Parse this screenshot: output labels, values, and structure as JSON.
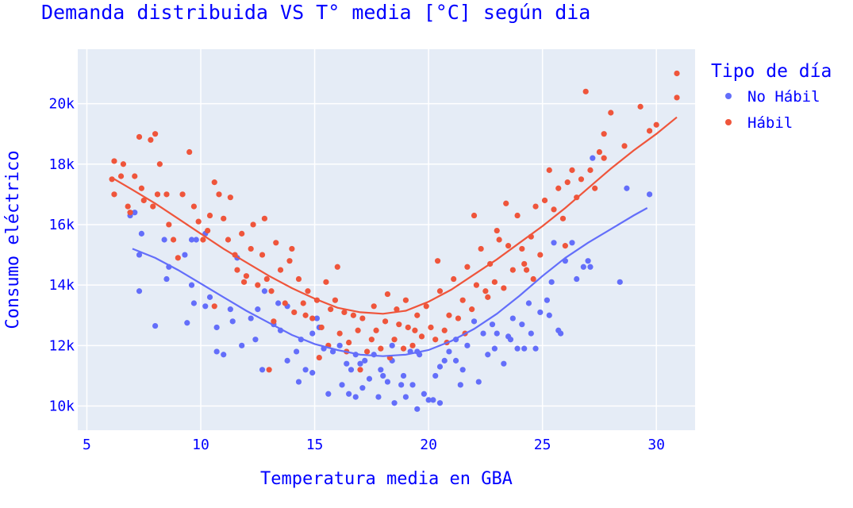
{
  "chart_data": {
    "type": "scatter",
    "title": "Demanda distribuida VS T° media [°C] según dia",
    "xlabel": "Temperatura media en GBA",
    "ylabel": "Consumo eléctrico",
    "xlim": [
      4.6,
      31.7
    ],
    "ylim": [
      9200,
      21800
    ],
    "x_ticks": [
      5,
      10,
      15,
      20,
      25,
      30
    ],
    "x_tick_labels": [
      "5",
      "10",
      "15",
      "20",
      "25",
      "30"
    ],
    "y_ticks": [
      10000,
      12000,
      14000,
      16000,
      18000,
      20000
    ],
    "y_tick_labels": [
      "10k",
      "12k",
      "14k",
      "16k",
      "18k",
      "20k"
    ],
    "grid": true,
    "legend_title": "Tipo de día",
    "legend_position": "right",
    "series": [
      {
        "name": "No Hábil",
        "color": "#636efa",
        "points": [
          [
            6.9,
            16300
          ],
          [
            7.1,
            16400
          ],
          [
            7.4,
            15700
          ],
          [
            7.3,
            15000
          ],
          [
            7.3,
            13800
          ],
          [
            8,
            12650
          ],
          [
            8.4,
            15500
          ],
          [
            8.6,
            14600
          ],
          [
            8.5,
            14200
          ],
          [
            9.4,
            12750
          ],
          [
            9.3,
            15000
          ],
          [
            9.6,
            15500
          ],
          [
            9.8,
            15500
          ],
          [
            9.6,
            14000
          ],
          [
            9.7,
            13400
          ],
          [
            10.2,
            13300
          ],
          [
            10.2,
            15700
          ],
          [
            10.4,
            13600
          ],
          [
            10.7,
            12600
          ],
          [
            10.7,
            11800
          ],
          [
            11,
            11700
          ],
          [
            11.3,
            13200
          ],
          [
            11.4,
            12800
          ],
          [
            11.6,
            14900
          ],
          [
            11.8,
            12000
          ],
          [
            12.2,
            12900
          ],
          [
            12.4,
            12200
          ],
          [
            12.8,
            13800
          ],
          [
            12.7,
            11200
          ],
          [
            13.2,
            12700
          ],
          [
            13.4,
            13400
          ],
          [
            13.5,
            12500
          ],
          [
            13.8,
            13300
          ],
          [
            13.8,
            11500
          ],
          [
            14.2,
            11800
          ],
          [
            14.4,
            12200
          ],
          [
            14.3,
            10800
          ],
          [
            14.6,
            11200
          ],
          [
            14.9,
            11100
          ],
          [
            15.2,
            12600
          ],
          [
            15.4,
            11900
          ],
          [
            15.6,
            10400
          ],
          [
            15.8,
            11800
          ],
          [
            16.1,
            12000
          ],
          [
            16.2,
            10700
          ],
          [
            16.4,
            11400
          ],
          [
            16.5,
            10400
          ],
          [
            16.6,
            11200
          ],
          [
            16.8,
            10300
          ],
          [
            17.1,
            10600
          ],
          [
            17,
            11400
          ],
          [
            17.2,
            11500
          ],
          [
            17.4,
            10900
          ],
          [
            17.6,
            11700
          ],
          [
            17.8,
            10300
          ],
          [
            18,
            11000
          ],
          [
            18.2,
            10800
          ],
          [
            18.4,
            11500
          ],
          [
            18.5,
            10100
          ],
          [
            18.8,
            10700
          ],
          [
            18.9,
            11000
          ],
          [
            19,
            10300
          ],
          [
            19.2,
            11800
          ],
          [
            19.3,
            10700
          ],
          [
            19.5,
            9900
          ],
          [
            19.6,
            11700
          ],
          [
            19.8,
            10400
          ],
          [
            20.0,
            10200
          ],
          [
            20.2,
            10200
          ],
          [
            20.3,
            11000
          ],
          [
            20.5,
            10100
          ],
          [
            20.7,
            11500
          ],
          [
            20.9,
            11800
          ],
          [
            21.2,
            12200
          ],
          [
            21.4,
            10700
          ],
          [
            21.5,
            11200
          ],
          [
            21.7,
            12000
          ],
          [
            22,
            12800
          ],
          [
            22.2,
            10800
          ],
          [
            22.4,
            12400
          ],
          [
            22.6,
            11700
          ],
          [
            22.8,
            12700
          ],
          [
            23.0,
            12400
          ],
          [
            23.3,
            11400
          ],
          [
            23.5,
            12300
          ],
          [
            23.7,
            12900
          ],
          [
            23.9,
            11900
          ],
          [
            24.1,
            12700
          ],
          [
            24.2,
            11900
          ],
          [
            24.5,
            12400
          ],
          [
            24.7,
            11900
          ],
          [
            24.9,
            13100
          ],
          [
            25.2,
            13500
          ],
          [
            25.3,
            13000
          ],
          [
            25.5,
            15400
          ],
          [
            25.7,
            12500
          ],
          [
            25.8,
            12400
          ],
          [
            26,
            14800
          ],
          [
            26.3,
            15400
          ],
          [
            26.5,
            14200
          ],
          [
            26.8,
            14600
          ],
          [
            27,
            14800
          ],
          [
            27.2,
            18200
          ],
          [
            27.1,
            14600
          ],
          [
            28.4,
            14100
          ],
          [
            28.7,
            17200
          ],
          [
            29.7,
            17000
          ],
          [
            15.1,
            12900
          ],
          [
            16.8,
            11700
          ],
          [
            18.4,
            12000
          ],
          [
            19.5,
            11800
          ],
          [
            21.2,
            11500
          ],
          [
            22.9,
            11900
          ],
          [
            12.5,
            13200
          ],
          [
            14.9,
            12400
          ],
          [
            17.9,
            11200
          ],
          [
            20.5,
            11300
          ],
          [
            23.6,
            12200
          ],
          [
            24.4,
            13400
          ],
          [
            25.4,
            14100
          ]
        ]
      },
      {
        "name": "Hábil",
        "color": "#ef553b",
        "points": [
          [
            6.1,
            17500
          ],
          [
            6.2,
            18100
          ],
          [
            6.2,
            17000
          ],
          [
            6.5,
            17600
          ],
          [
            6.6,
            18000
          ],
          [
            6.8,
            16600
          ],
          [
            7.1,
            17600
          ],
          [
            7.3,
            18900
          ],
          [
            7.4,
            17200
          ],
          [
            7.5,
            16800
          ],
          [
            7.8,
            18800
          ],
          [
            7.9,
            16600
          ],
          [
            8.0,
            19000
          ],
          [
            8.2,
            18000
          ],
          [
            8.1,
            17000
          ],
          [
            8.5,
            17000
          ],
          [
            8.6,
            16000
          ],
          [
            8.8,
            15500
          ],
          [
            9.2,
            17000
          ],
          [
            9.5,
            18400
          ],
          [
            9.7,
            16600
          ],
          [
            9.9,
            16100
          ],
          [
            10.1,
            15500
          ],
          [
            10.3,
            15800
          ],
          [
            10.4,
            16300
          ],
          [
            10.6,
            17400
          ],
          [
            10.8,
            17000
          ],
          [
            11.0,
            16200
          ],
          [
            11.2,
            15500
          ],
          [
            11.5,
            15000
          ],
          [
            11.6,
            14500
          ],
          [
            11.8,
            15700
          ],
          [
            12.0,
            14300
          ],
          [
            12.2,
            15200
          ],
          [
            12.3,
            16000
          ],
          [
            12.5,
            14000
          ],
          [
            12.7,
            15000
          ],
          [
            12.9,
            14200
          ],
          [
            13.1,
            13800
          ],
          [
            13.3,
            15400
          ],
          [
            13.5,
            14500
          ],
          [
            13.7,
            13400
          ],
          [
            13.9,
            14800
          ],
          [
            14.1,
            13100
          ],
          [
            14.3,
            14200
          ],
          [
            14.5,
            13400
          ],
          [
            14.7,
            13800
          ],
          [
            14.9,
            12900
          ],
          [
            15.1,
            13500
          ],
          [
            15.3,
            12600
          ],
          [
            15.5,
            14100
          ],
          [
            15.7,
            13200
          ],
          [
            15.9,
            13500
          ],
          [
            16.1,
            12400
          ],
          [
            16.3,
            13100
          ],
          [
            16.5,
            12100
          ],
          [
            16.7,
            13000
          ],
          [
            16.9,
            12500
          ],
          [
            17.1,
            12900
          ],
          [
            17.3,
            11800
          ],
          [
            17.5,
            12200
          ],
          [
            17.7,
            12500
          ],
          [
            17.9,
            11900
          ],
          [
            18.1,
            12800
          ],
          [
            18.3,
            11600
          ],
          [
            18.5,
            12200
          ],
          [
            18.7,
            12700
          ],
          [
            18.9,
            11900
          ],
          [
            19.1,
            12600
          ],
          [
            19.3,
            12000
          ],
          [
            19.5,
            13000
          ],
          [
            19.7,
            12300
          ],
          [
            19.9,
            13300
          ],
          [
            20.1,
            12600
          ],
          [
            20.3,
            12200
          ],
          [
            20.5,
            13800
          ],
          [
            20.7,
            12500
          ],
          [
            20.9,
            13000
          ],
          [
            21.1,
            14200
          ],
          [
            21.3,
            12900
          ],
          [
            21.5,
            13500
          ],
          [
            21.7,
            14600
          ],
          [
            21.9,
            13200
          ],
          [
            22.1,
            14000
          ],
          [
            22.3,
            15200
          ],
          [
            22.5,
            13800
          ],
          [
            22.7,
            14700
          ],
          [
            22.9,
            14100
          ],
          [
            23.1,
            15500
          ],
          [
            23.3,
            13900
          ],
          [
            23.5,
            15300
          ],
          [
            23.7,
            14500
          ],
          [
            23.9,
            16300
          ],
          [
            24.1,
            15200
          ],
          [
            24.3,
            14500
          ],
          [
            24.5,
            15600
          ],
          [
            24.7,
            16600
          ],
          [
            24.9,
            15000
          ],
          [
            25.1,
            16800
          ],
          [
            25.3,
            17800
          ],
          [
            25.5,
            16500
          ],
          [
            25.7,
            17200
          ],
          [
            25.9,
            16200
          ],
          [
            26.1,
            17400
          ],
          [
            26.3,
            17800
          ],
          [
            26.5,
            16900
          ],
          [
            26.7,
            17500
          ],
          [
            26.9,
            20400
          ],
          [
            27.1,
            17800
          ],
          [
            27.3,
            17200
          ],
          [
            27.5,
            18400
          ],
          [
            27.7,
            19000
          ],
          [
            28.0,
            19700
          ],
          [
            28.6,
            18600
          ],
          [
            29.3,
            19900
          ],
          [
            29.7,
            19100
          ],
          [
            30.0,
            19300
          ],
          [
            30.9,
            21000
          ],
          [
            30.9,
            20200
          ],
          [
            27.7,
            18200
          ],
          [
            6.9,
            16400
          ],
          [
            9.0,
            14900
          ],
          [
            11.3,
            16900
          ],
          [
            12.8,
            16200
          ],
          [
            14.6,
            13000
          ],
          [
            16.0,
            14600
          ],
          [
            17.6,
            13300
          ],
          [
            19.0,
            13500
          ],
          [
            20.4,
            14800
          ],
          [
            22.0,
            16300
          ],
          [
            23.4,
            16700
          ],
          [
            24.6,
            14200
          ],
          [
            26.0,
            15300
          ],
          [
            10.6,
            13300
          ],
          [
            13.2,
            12800
          ],
          [
            15.6,
            12000
          ],
          [
            17.0,
            11200
          ],
          [
            18.6,
            13200
          ],
          [
            20.8,
            12100
          ],
          [
            22.6,
            13600
          ],
          [
            13.0,
            11200
          ],
          [
            15.2,
            11600
          ],
          [
            16.4,
            11800
          ],
          [
            19.4,
            12500
          ],
          [
            21.6,
            12400
          ],
          [
            24.2,
            14700
          ],
          [
            11.9,
            14100
          ],
          [
            14.0,
            15200
          ],
          [
            18.2,
            13700
          ],
          [
            23.0,
            15800
          ]
        ]
      }
    ],
    "trend_lines": [
      {
        "name": "No Hábil",
        "color": "#636efa",
        "x": [
          7,
          8,
          9,
          10,
          11,
          12,
          13,
          14,
          15,
          16,
          17,
          18,
          19,
          20,
          21,
          22,
          23,
          24,
          25,
          26,
          27,
          28,
          29,
          29.6
        ],
        "y": [
          15200,
          14900,
          14500,
          14050,
          13600,
          13150,
          12750,
          12350,
          12050,
          11850,
          11700,
          11650,
          11700,
          11850,
          12150,
          12550,
          13050,
          13650,
          14300,
          14900,
          15400,
          15850,
          16300,
          16550
        ]
      },
      {
        "name": "Hábil",
        "color": "#ef553b",
        "x": [
          6.1,
          7,
          8,
          9,
          10,
          11,
          12,
          13,
          14,
          15,
          16,
          17,
          18,
          19,
          20,
          21,
          22,
          23,
          24,
          25,
          26,
          27,
          28,
          29,
          30,
          30.9
        ],
        "y": [
          17550,
          17150,
          16700,
          16200,
          15700,
          15200,
          14750,
          14300,
          13900,
          13550,
          13250,
          13100,
          13050,
          13150,
          13450,
          13850,
          14350,
          14850,
          15400,
          15950,
          16550,
          17200,
          17850,
          18450,
          19000,
          19550
        ]
      }
    ]
  }
}
